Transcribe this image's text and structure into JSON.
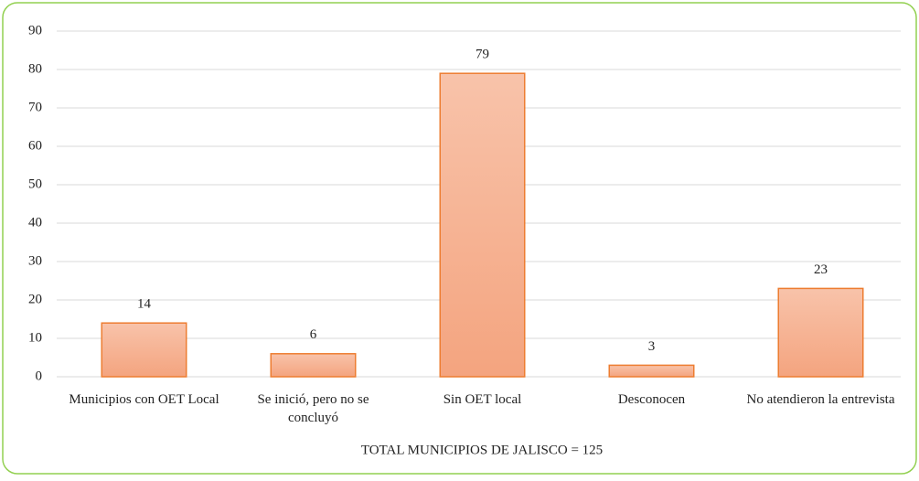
{
  "chart_data": {
    "type": "bar",
    "x_label": "TOTAL MUNICIPIOS DE JALISCO = 125",
    "categories": [
      "Municipios con OET Local",
      "Se inició, pero no se concluyó",
      "Sin OET local",
      "Desconocen",
      "No atendieron la entrevista"
    ],
    "values": [
      14,
      6,
      79,
      3,
      23
    ],
    "color": "#f4a47f",
    "edge_color": "#ed7d31",
    "ylim": [
      0,
      90
    ],
    "yticks": [
      0,
      10,
      20,
      30,
      40,
      50,
      60,
      70,
      80,
      90
    ],
    "grid": true,
    "data_labels": true
  }
}
